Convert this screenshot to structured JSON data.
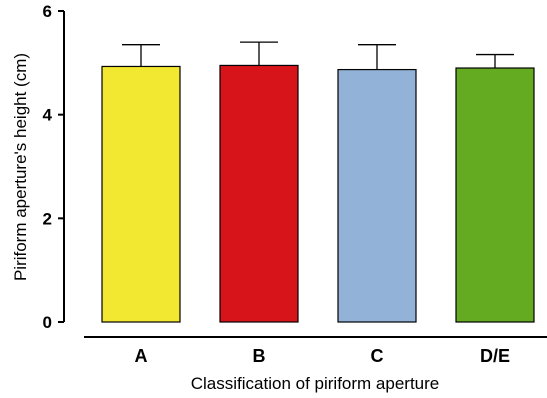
{
  "chart_data": {
    "type": "bar",
    "categories": [
      "A",
      "B",
      "C",
      "D/E"
    ],
    "values": [
      4.93,
      4.95,
      4.87,
      4.9
    ],
    "errors": [
      0.42,
      0.45,
      0.48,
      0.26
    ],
    "colors": [
      "#f2e731",
      "#d8141b",
      "#93b2d8",
      "#65ab22"
    ],
    "xlabel": "Classification of piriform aperture",
    "ylabel": "Piriform aperture's height (cm)",
    "ylim": [
      0,
      6
    ],
    "yticks": [
      0,
      2,
      4,
      6
    ],
    "ytick_labels": [
      "0",
      "2",
      "4",
      "6"
    ],
    "grid": false
  }
}
